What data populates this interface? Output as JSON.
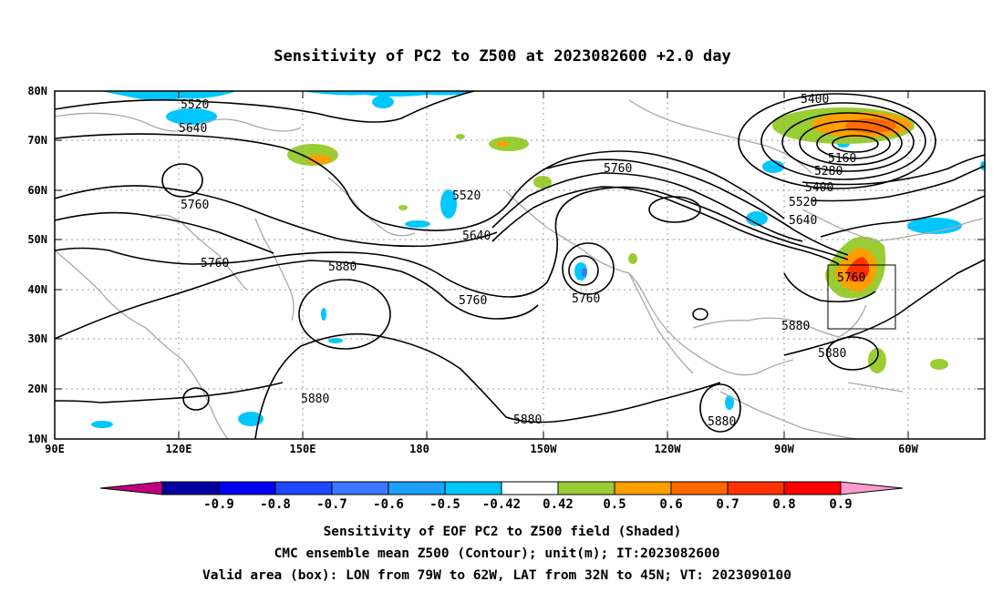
{
  "title": "Sensitivity of PC2 to Z500 at 2023082600 +2.0 day",
  "map": {
    "lon_range": [
      "90E",
      "45W"
    ],
    "lat_range": [
      "10N",
      "80N"
    ],
    "lon_ticks": [
      "90E",
      "120E",
      "150E",
      "180",
      "150W",
      "120W",
      "90W",
      "60W"
    ],
    "lat_ticks": [
      "80N",
      "70N",
      "60N",
      "50N",
      "40N",
      "30N",
      "20N",
      "10N"
    ],
    "grid": "dotted",
    "contour_labels": [
      "5520",
      "5640",
      "5760",
      "5760",
      "5880",
      "5880",
      "5520",
      "5640",
      "5760",
      "5760",
      "5760",
      "5880",
      "5880",
      "5400",
      "5160",
      "5280",
      "5400",
      "5520",
      "5640",
      "5760",
      "5880",
      "5880"
    ],
    "valid_box": {
      "lon": "79W to 62W",
      "lat": "32N to 45N"
    }
  },
  "colorbar": {
    "labels": [
      "-0.9",
      "-0.8",
      "-0.7",
      "-0.6",
      "-0.5",
      "-0.42",
      "0.42",
      "0.5",
      "0.6",
      "0.7",
      "0.8",
      "0.9"
    ],
    "colors": [
      "#0000a0",
      "#0000f0",
      "#1e46ff",
      "#3c78ff",
      "#1ea0ff",
      "#00c8ff",
      "#ffffff",
      "#9acd32",
      "#ff9f00",
      "#ff6a00",
      "#ff3200",
      "#ff0000"
    ],
    "low_color": "#c0007a",
    "high_color": "#ff9ccf"
  },
  "caption": {
    "line1": "Sensitivity of EOF PC2 to Z500 field (Shaded)",
    "line2": "CMC ensemble mean Z500 (Contour); unit(m); IT:2023082600",
    "line3": "Valid area (box): LON from 79W to 62W, LAT from 32N to 45N; VT: 2023090100"
  }
}
